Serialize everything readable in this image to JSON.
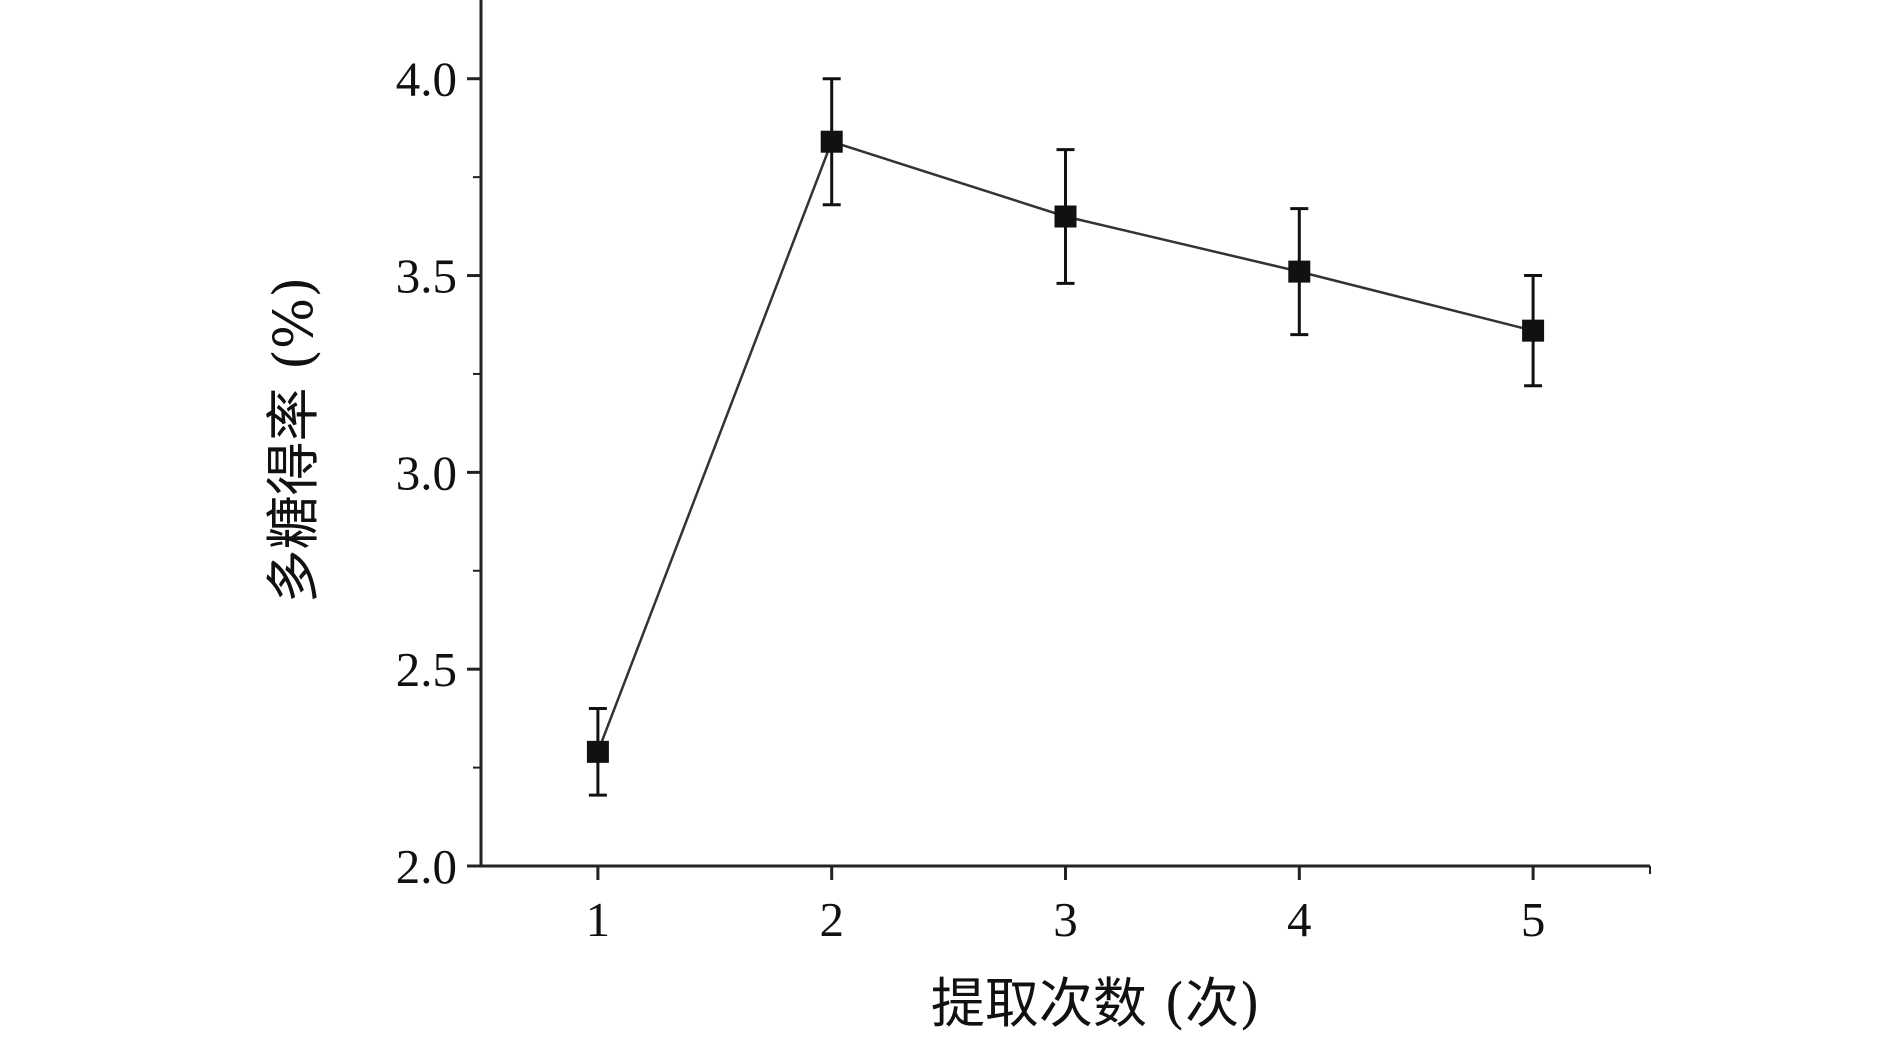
{
  "chart_data": {
    "type": "line",
    "title": "",
    "xlabel": "提取次数 (次)",
    "ylabel": "多糖得率 (%)",
    "x": [
      1,
      2,
      3,
      4,
      5
    ],
    "xlim": [
      0.5,
      5.5
    ],
    "ylim": [
      2.0,
      4.2
    ],
    "x_ticks": [
      "1",
      "2",
      "3",
      "4",
      "5"
    ],
    "y_ticks": [
      "2.0",
      "2.5",
      "3.0",
      "3.5",
      "4.0"
    ],
    "grid": false,
    "legend": "none",
    "series": [
      {
        "values": [
          2.29,
          3.84,
          3.65,
          3.51,
          3.36
        ],
        "error": [
          0.11,
          0.16,
          0.17,
          0.16,
          0.14
        ],
        "marker": "square",
        "color": "#111111"
      }
    ]
  }
}
